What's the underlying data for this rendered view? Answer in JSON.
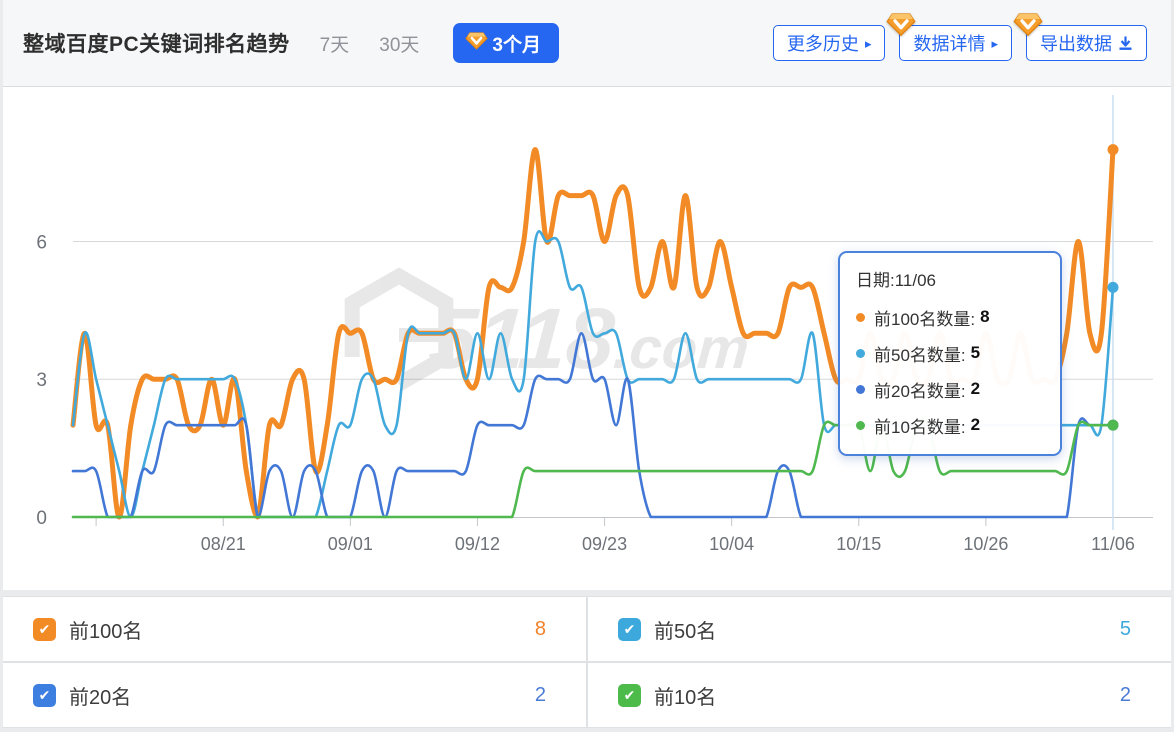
{
  "header": {
    "title": "整域百度PC关键词排名趋势",
    "range_tabs": [
      {
        "label": "7天",
        "selected": false
      },
      {
        "label": "30天",
        "selected": false
      },
      {
        "label": "3个月",
        "selected": true,
        "premium": true
      }
    ],
    "buttons": [
      {
        "label": "更多历史",
        "arrow": "▸",
        "premium": false
      },
      {
        "label": "数据详情",
        "arrow": "▸",
        "premium": true
      },
      {
        "label": "导出数据",
        "icon": "download-icon",
        "premium": true
      }
    ],
    "accent_blue": "#2667f1"
  },
  "chart_data": {
    "type": "line",
    "smooth": true,
    "watermark": "5118.com",
    "x_tick_labels": [
      "08/21",
      "09/01",
      "09/12",
      "09/23",
      "10/04",
      "10/15",
      "10/26",
      "11/06"
    ],
    "x_tick_days": [
      13,
      24,
      35,
      46,
      57,
      68,
      79,
      90
    ],
    "unlabeled_tick_day": 2,
    "days_total": 91,
    "y_ticks": [
      0,
      3,
      6
    ],
    "ylim": [
      0,
      9
    ],
    "grid": true,
    "axis_pointer_day": 90,
    "series": [
      {
        "name": "前100名",
        "color": "#F28B25",
        "width": 5,
        "values": [
          2,
          4,
          2,
          2,
          0,
          2,
          3,
          3,
          3,
          3,
          2,
          2,
          3,
          2,
          3,
          1,
          0,
          2,
          2,
          3,
          3,
          1,
          2,
          4,
          4,
          4,
          3,
          3,
          3,
          4,
          4,
          4,
          4,
          4,
          3,
          3,
          5,
          5,
          5,
          6,
          8,
          6,
          7,
          7,
          7,
          7,
          6,
          7,
          7,
          5,
          5,
          6,
          5,
          7,
          5,
          5,
          6,
          5,
          4,
          4,
          4,
          4,
          5,
          5,
          5,
          4,
          3,
          3,
          3,
          4,
          3,
          3,
          4,
          3,
          3,
          4,
          3,
          3,
          3,
          4,
          3,
          3,
          4,
          3,
          3,
          3,
          4,
          6,
          4,
          4,
          8
        ]
      },
      {
        "name": "前50名",
        "color": "#41A9DC",
        "width": 2.6,
        "values": [
          2,
          4,
          3,
          2,
          1,
          0,
          1,
          2,
          3,
          3,
          3,
          3,
          3,
          3,
          3,
          2,
          0,
          0,
          0,
          0,
          0,
          0,
          1,
          2,
          2,
          3,
          3,
          2,
          2,
          4,
          4,
          4,
          4,
          4,
          3,
          4,
          3,
          4,
          3,
          3,
          6,
          6,
          6,
          5,
          5,
          4,
          4,
          4,
          3,
          3,
          3,
          3,
          3,
          4,
          3,
          3,
          3,
          3,
          3,
          3,
          3,
          3,
          3,
          3,
          4,
          2,
          2,
          2,
          2,
          2,
          2,
          2,
          2,
          2,
          2,
          2,
          2,
          2,
          2,
          2,
          2,
          2,
          2,
          2,
          2,
          2,
          2,
          2,
          2,
          2,
          5
        ]
      },
      {
        "name": "前20名",
        "color": "#4277D5",
        "width": 2.6,
        "values": [
          1,
          1,
          1,
          0,
          0,
          0,
          1,
          1,
          2,
          2,
          2,
          2,
          2,
          2,
          2,
          2,
          0,
          1,
          1,
          0,
          1,
          1,
          0,
          0,
          0,
          1,
          1,
          0,
          1,
          1,
          1,
          1,
          1,
          1,
          1,
          2,
          2,
          2,
          2,
          2,
          3,
          3,
          3,
          3,
          4,
          3,
          3,
          2,
          3,
          1,
          0,
          0,
          0,
          0,
          0,
          0,
          0,
          0,
          0,
          0,
          0,
          1,
          1,
          0,
          0,
          0,
          0,
          0,
          0,
          0,
          0,
          0,
          0,
          0,
          0,
          0,
          0,
          0,
          0,
          0,
          0,
          0,
          0,
          0,
          0,
          0,
          0,
          2,
          2,
          2,
          2
        ]
      },
      {
        "name": "前10名",
        "color": "#4FB84E",
        "width": 2.6,
        "values": [
          0,
          0,
          0,
          0,
          0,
          0,
          0,
          0,
          0,
          0,
          0,
          0,
          0,
          0,
          0,
          0,
          0,
          0,
          0,
          0,
          0,
          0,
          0,
          0,
          0,
          0,
          0,
          0,
          0,
          0,
          0,
          0,
          0,
          0,
          0,
          0,
          0,
          0,
          0,
          1,
          1,
          1,
          1,
          1,
          1,
          1,
          1,
          1,
          1,
          1,
          1,
          1,
          1,
          1,
          1,
          1,
          1,
          1,
          1,
          1,
          1,
          1,
          1,
          1,
          1,
          2,
          2,
          2,
          2,
          1,
          2,
          1,
          1,
          2,
          2,
          1,
          1,
          1,
          1,
          1,
          1,
          1,
          1,
          1,
          1,
          1,
          1,
          2,
          2,
          2,
          2
        ]
      }
    ],
    "end_dot_values": {
      "前100名": 8,
      "前50名": 5,
      "前20名": 2,
      "前10名": 2
    }
  },
  "tooltip": {
    "title": "日期:11/06",
    "items": [
      {
        "label": "前100名数量:",
        "value": "8",
        "color": "#F28B25"
      },
      {
        "label": "前50名数量:",
        "value": "5",
        "color": "#41A9DC"
      },
      {
        "label": "前20名数量:",
        "value": "2",
        "color": "#4277D5"
      },
      {
        "label": "前10名数量:",
        "value": "2",
        "color": "#4FB84E"
      }
    ]
  },
  "legend": [
    {
      "label": "前100名",
      "value": "8",
      "checkbox_color": "#F28B25",
      "value_color": "#F0822A",
      "checked": true
    },
    {
      "label": "前50名",
      "value": "5",
      "checkbox_color": "#3CA8DC",
      "value_color": "#3CA8DC",
      "checked": true
    },
    {
      "label": "前20名",
      "value": "2",
      "checkbox_color": "#3D7FE0",
      "value_color": "#4A7BD5",
      "checked": true
    },
    {
      "label": "前10名",
      "value": "2",
      "checkbox_color": "#4CBB4A",
      "value_color": "#4A7BD5",
      "checked": true
    }
  ],
  "colors": {
    "grid_line": "#d6d9dc",
    "axis_line": "#c2c6ca",
    "axis_label": "#6d7278",
    "axis_pointer": "#c9ddf0",
    "watermark_gray": "#000000"
  }
}
